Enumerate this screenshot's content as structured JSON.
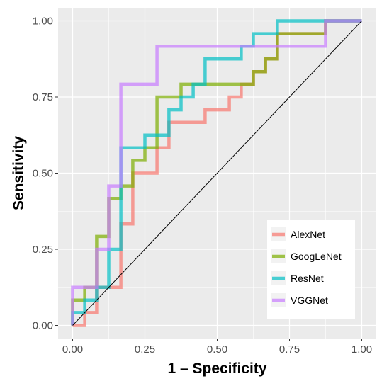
{
  "chart_data": {
    "type": "line",
    "xlabel": "1 – Specificity",
    "ylabel": "Sensitivity",
    "xlim": [
      0,
      1
    ],
    "ylim": [
      0,
      1
    ],
    "x_ticks": [
      "0.00",
      "0.25",
      "0.50",
      "0.75",
      "1.00"
    ],
    "y_ticks": [
      "0.00",
      "0.25",
      "0.50",
      "0.75",
      "1.00"
    ],
    "grid": true,
    "legend_position": "bottom-right",
    "series": [
      {
        "name": "AlexNet",
        "color": "#F8766D",
        "points": [
          [
            0,
            0
          ],
          [
            0.042,
            0
          ],
          [
            0.042,
            0.042
          ],
          [
            0.083,
            0.042
          ],
          [
            0.083,
            0.125
          ],
          [
            0.167,
            0.125
          ],
          [
            0.167,
            0.333
          ],
          [
            0.208,
            0.333
          ],
          [
            0.208,
            0.5
          ],
          [
            0.292,
            0.5
          ],
          [
            0.292,
            0.583
          ],
          [
            0.333,
            0.583
          ],
          [
            0.333,
            0.667
          ],
          [
            0.458,
            0.667
          ],
          [
            0.458,
            0.708
          ],
          [
            0.542,
            0.708
          ],
          [
            0.542,
            0.75
          ],
          [
            0.583,
            0.75
          ],
          [
            0.583,
            0.792
          ],
          [
            0.625,
            0.792
          ],
          [
            0.625,
            0.833
          ],
          [
            0.667,
            0.833
          ],
          [
            0.667,
            0.875
          ],
          [
            0.708,
            0.875
          ],
          [
            0.708,
            0.958
          ],
          [
            0.875,
            0.958
          ],
          [
            0.875,
            1
          ],
          [
            1,
            1
          ]
        ]
      },
      {
        "name": "GoogLeNet",
        "color": "#7CAE00",
        "points": [
          [
            0,
            0
          ],
          [
            0,
            0.083
          ],
          [
            0.042,
            0.083
          ],
          [
            0.042,
            0.125
          ],
          [
            0.083,
            0.125
          ],
          [
            0.083,
            0.292
          ],
          [
            0.125,
            0.292
          ],
          [
            0.125,
            0.417
          ],
          [
            0.167,
            0.417
          ],
          [
            0.167,
            0.458
          ],
          [
            0.208,
            0.458
          ],
          [
            0.208,
            0.542
          ],
          [
            0.25,
            0.542
          ],
          [
            0.25,
            0.583
          ],
          [
            0.292,
            0.583
          ],
          [
            0.292,
            0.75
          ],
          [
            0.375,
            0.75
          ],
          [
            0.375,
            0.792
          ],
          [
            0.625,
            0.792
          ],
          [
            0.625,
            0.833
          ],
          [
            0.667,
            0.833
          ],
          [
            0.667,
            0.875
          ],
          [
            0.708,
            0.875
          ],
          [
            0.708,
            0.958
          ],
          [
            0.875,
            0.958
          ],
          [
            0.875,
            1
          ],
          [
            1,
            1
          ]
        ]
      },
      {
        "name": "ResNet",
        "color": "#00BFC4",
        "points": [
          [
            0,
            0
          ],
          [
            0,
            0.042
          ],
          [
            0.042,
            0.042
          ],
          [
            0.042,
            0.083
          ],
          [
            0.083,
            0.083
          ],
          [
            0.083,
            0.125
          ],
          [
            0.125,
            0.125
          ],
          [
            0.125,
            0.25
          ],
          [
            0.167,
            0.25
          ],
          [
            0.167,
            0.583
          ],
          [
            0.25,
            0.583
          ],
          [
            0.25,
            0.625
          ],
          [
            0.333,
            0.625
          ],
          [
            0.333,
            0.708
          ],
          [
            0.375,
            0.708
          ],
          [
            0.375,
            0.75
          ],
          [
            0.417,
            0.75
          ],
          [
            0.417,
            0.792
          ],
          [
            0.458,
            0.792
          ],
          [
            0.458,
            0.875
          ],
          [
            0.583,
            0.875
          ],
          [
            0.583,
            0.917
          ],
          [
            0.625,
            0.917
          ],
          [
            0.625,
            0.958
          ],
          [
            0.708,
            0.958
          ],
          [
            0.708,
            1
          ],
          [
            1,
            1
          ]
        ]
      },
      {
        "name": "VGGNet",
        "color": "#C77CFF",
        "points": [
          [
            0,
            0
          ],
          [
            0,
            0.125
          ],
          [
            0.083,
            0.125
          ],
          [
            0.083,
            0.25
          ],
          [
            0.125,
            0.25
          ],
          [
            0.125,
            0.458
          ],
          [
            0.167,
            0.458
          ],
          [
            0.167,
            0.792
          ],
          [
            0.292,
            0.792
          ],
          [
            0.292,
            0.917
          ],
          [
            0.875,
            0.917
          ],
          [
            0.875,
            1
          ],
          [
            1,
            1
          ]
        ]
      }
    ]
  }
}
